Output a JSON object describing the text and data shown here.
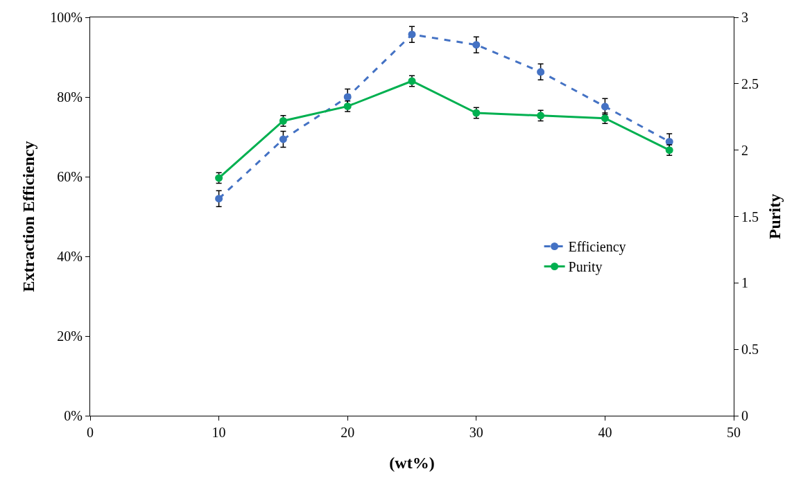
{
  "chart_data": {
    "type": "line",
    "xlabel": "(wt%)",
    "ylabel": "Extraction Efficiency",
    "y2label": "Purity",
    "x": [
      10,
      15,
      20,
      25,
      30,
      35,
      40,
      45
    ],
    "series": [
      {
        "name": "Efficiency",
        "color": "#4472c4",
        "line_style": "dashed",
        "values": [
          54.5,
          69.4,
          80.0,
          95.7,
          93.1,
          86.3,
          77.6,
          68.8
        ],
        "errors": [
          2,
          2,
          2,
          2,
          2,
          2,
          2,
          2
        ]
      },
      {
        "name": "Purity",
        "color": "#00b050",
        "line_style": "solid",
        "axis": "y2",
        "values": [
          1.79,
          2.22,
          2.33,
          2.52,
          2.28,
          2.26,
          2.24,
          2.0
        ],
        "errors": [
          0.04,
          0.04,
          0.04,
          0.04,
          0.04,
          0.04,
          0.04,
          0.04
        ]
      }
    ],
    "xlim": [
      0,
      50
    ],
    "xticks": [
      0,
      10,
      20,
      30,
      40,
      50
    ],
    "ylim": [
      0,
      100
    ],
    "yticks": [
      {
        "value": 0,
        "label": "0%"
      },
      {
        "value": 20,
        "label": "20%"
      },
      {
        "value": 40,
        "label": "40%"
      },
      {
        "value": 60,
        "label": "60%"
      },
      {
        "value": 80,
        "label": "80%"
      },
      {
        "value": 100,
        "label": "100%"
      }
    ],
    "y2lim": [
      0,
      3
    ],
    "y2ticks": [
      0,
      0.5,
      1,
      1.5,
      2,
      2.5,
      3
    ],
    "grid": false,
    "legend": "right",
    "marker": "circle"
  }
}
